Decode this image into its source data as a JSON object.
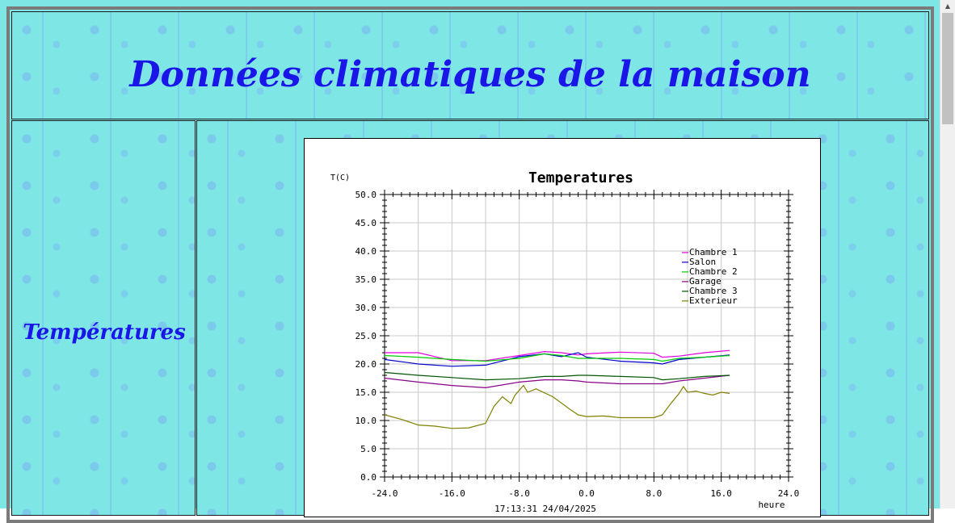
{
  "header": {
    "title": "Données climatiques de la maison"
  },
  "nav": {
    "temperatures_label": "Températures"
  },
  "chart_data": {
    "type": "line",
    "title": "Temperatures",
    "ylabel": "T(C)",
    "xlabel": "heure",
    "timestamp": "17:13:31  24/04/2025",
    "xlim": [
      -24,
      24
    ],
    "ylim": [
      0,
      50
    ],
    "x_ticks": [
      "-24.0",
      "-16.0",
      "-8.0",
      "0.0",
      "8.0",
      "16.0",
      "24.0"
    ],
    "y_ticks": [
      "0.0",
      "5.0",
      "10.0",
      "15.0",
      "20.0",
      "25.0",
      "30.0",
      "35.0",
      "40.0",
      "45.0",
      "50.0"
    ],
    "grid": true,
    "legend_position": "top-right",
    "series": [
      {
        "name": "Chambre 1",
        "color": "#e000e0",
        "points": [
          [
            -24,
            22.0
          ],
          [
            -20,
            22.0
          ],
          [
            -16,
            20.6
          ],
          [
            -12,
            20.6
          ],
          [
            -8,
            21.5
          ],
          [
            -5,
            22.2
          ],
          [
            -3,
            22.0
          ],
          [
            -1,
            21.6
          ],
          [
            0,
            21.8
          ],
          [
            4,
            22.1
          ],
          [
            8,
            21.9
          ],
          [
            9,
            21.2
          ],
          [
            11,
            21.4
          ],
          [
            14,
            22.0
          ],
          [
            17,
            22.4
          ]
        ]
      },
      {
        "name": "Salon",
        "color": "#0000cc",
        "points": [
          [
            -24,
            20.8
          ],
          [
            -20,
            20.0
          ],
          [
            -16,
            19.6
          ],
          [
            -12,
            19.8
          ],
          [
            -8,
            21.3
          ],
          [
            -5,
            21.8
          ],
          [
            -3,
            21.3
          ],
          [
            -1,
            22.0
          ],
          [
            0,
            21.2
          ],
          [
            4,
            20.5
          ],
          [
            8,
            20.2
          ],
          [
            9,
            20.0
          ],
          [
            11,
            20.8
          ],
          [
            14,
            21.2
          ],
          [
            17,
            21.6
          ]
        ]
      },
      {
        "name": "Chambre 2",
        "color": "#00cc00",
        "points": [
          [
            -24,
            21.5
          ],
          [
            -20,
            21.2
          ],
          [
            -16,
            20.8
          ],
          [
            -12,
            20.5
          ],
          [
            -8,
            21.0
          ],
          [
            -5,
            21.8
          ],
          [
            -3,
            21.5
          ],
          [
            -1,
            21.0
          ],
          [
            0,
            21.0
          ],
          [
            4,
            21.0
          ],
          [
            8,
            20.8
          ],
          [
            9,
            20.5
          ],
          [
            11,
            21.0
          ],
          [
            14,
            21.2
          ],
          [
            17,
            21.5
          ]
        ]
      },
      {
        "name": "Garage",
        "color": "#880088",
        "points": [
          [
            -24,
            17.5
          ],
          [
            -20,
            16.8
          ],
          [
            -16,
            16.2
          ],
          [
            -12,
            15.8
          ],
          [
            -8,
            16.8
          ],
          [
            -5,
            17.2
          ],
          [
            -3,
            17.2
          ],
          [
            -1,
            17.0
          ],
          [
            0,
            16.8
          ],
          [
            4,
            16.5
          ],
          [
            8,
            16.5
          ],
          [
            9,
            16.5
          ],
          [
            11,
            17.0
          ],
          [
            14,
            17.5
          ],
          [
            17,
            18.0
          ]
        ]
      },
      {
        "name": "Chambre 3",
        "color": "#005500",
        "points": [
          [
            -24,
            18.5
          ],
          [
            -20,
            18.0
          ],
          [
            -16,
            17.6
          ],
          [
            -12,
            17.2
          ],
          [
            -8,
            17.4
          ],
          [
            -5,
            17.8
          ],
          [
            -3,
            17.8
          ],
          [
            -1,
            18.0
          ],
          [
            0,
            18.0
          ],
          [
            4,
            17.8
          ],
          [
            8,
            17.6
          ],
          [
            9,
            17.2
          ],
          [
            11,
            17.4
          ],
          [
            14,
            17.8
          ],
          [
            17,
            18.0
          ]
        ]
      },
      {
        "name": "Exterieur",
        "color": "#808000",
        "points": [
          [
            -24,
            11.0
          ],
          [
            -22,
            10.2
          ],
          [
            -20,
            9.2
          ],
          [
            -18,
            9.0
          ],
          [
            -16,
            8.6
          ],
          [
            -14,
            8.7
          ],
          [
            -12,
            9.5
          ],
          [
            -11,
            12.5
          ],
          [
            -10,
            14.2
          ],
          [
            -9,
            13.0
          ],
          [
            -8.5,
            14.5
          ],
          [
            -7.5,
            16.2
          ],
          [
            -7,
            15.0
          ],
          [
            -6,
            15.6
          ],
          [
            -4,
            14.2
          ],
          [
            -2,
            12.0
          ],
          [
            -1,
            11.0
          ],
          [
            0,
            10.7
          ],
          [
            2,
            10.8
          ],
          [
            4,
            10.5
          ],
          [
            8,
            10.5
          ],
          [
            9,
            11.0
          ],
          [
            10,
            13.0
          ],
          [
            11,
            14.8
          ],
          [
            11.5,
            16.0
          ],
          [
            12,
            15.0
          ],
          [
            13,
            15.2
          ],
          [
            14,
            14.8
          ],
          [
            15,
            14.5
          ],
          [
            16,
            15.0
          ],
          [
            17,
            14.8
          ]
        ]
      }
    ]
  }
}
